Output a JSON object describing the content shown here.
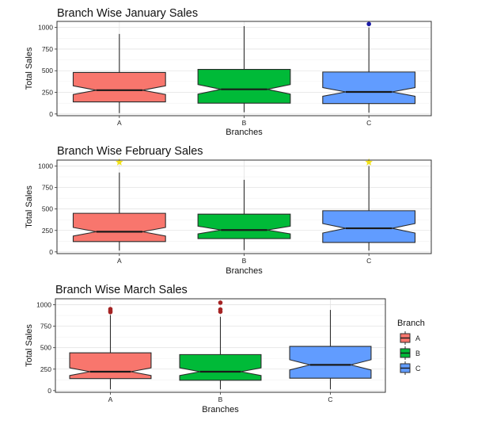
{
  "theme": {
    "colors": {
      "A": "#F8766D",
      "B": "#00BA38",
      "C": "#619CFF"
    },
    "outline": "#2b2b2b",
    "grid_major": "#e3e3e3",
    "grid_minor": "#f1f1f1"
  },
  "legend": {
    "title": "Branch",
    "placement": "right",
    "items": [
      "A",
      "B",
      "C"
    ]
  },
  "chart_data": [
    {
      "type": "boxplot",
      "notched": true,
      "title": "Branch Wise January Sales",
      "xlabel": "Branches",
      "ylabel": "Total Sales",
      "ylim": [
        -20,
        1070
      ],
      "yticks": [
        0,
        250,
        500,
        750,
        1000
      ],
      "grid": true,
      "categories": [
        "A",
        "B",
        "C"
      ],
      "boxes": [
        {
          "name": "A",
          "min": 10,
          "q1": 140,
          "median": 275,
          "q3": 480,
          "max": 925,
          "notch_low": 225,
          "notch_high": 325,
          "outliers": []
        },
        {
          "name": "B",
          "min": 20,
          "q1": 125,
          "median": 285,
          "q3": 515,
          "max": 1015,
          "notch_low": 230,
          "notch_high": 340,
          "outliers": []
        },
        {
          "name": "C",
          "min": 15,
          "q1": 120,
          "median": 255,
          "q3": 485,
          "max": 1000,
          "notch_low": 205,
          "notch_high": 305,
          "outliers": [
            1040
          ]
        }
      ],
      "outlier_color": "#1a1aa6"
    },
    {
      "type": "boxplot",
      "notched": true,
      "title": "Branch Wise February Sales",
      "xlabel": "Branches",
      "ylabel": "Total Sales",
      "ylim": [
        -20,
        1070
      ],
      "yticks": [
        0,
        250,
        500,
        750,
        1000
      ],
      "grid": true,
      "categories": [
        "A",
        "B",
        "C"
      ],
      "boxes": [
        {
          "name": "A",
          "min": 15,
          "q1": 120,
          "median": 235,
          "q3": 450,
          "max": 925,
          "notch_low": 185,
          "notch_high": 285,
          "outliers": [
            1045
          ]
        },
        {
          "name": "B",
          "min": 20,
          "q1": 155,
          "median": 255,
          "q3": 440,
          "max": 840,
          "notch_low": 210,
          "notch_high": 300,
          "outliers": []
        },
        {
          "name": "C",
          "min": 15,
          "q1": 110,
          "median": 275,
          "q3": 480,
          "max": 1000,
          "notch_low": 220,
          "notch_high": 330,
          "outliers": [
            1045
          ]
        }
      ],
      "outlier_color": "#f2e21a",
      "outlier_shape": "star"
    },
    {
      "type": "boxplot",
      "notched": true,
      "title": "Branch Wise March Sales",
      "xlabel": "Branches",
      "ylabel": "Total Sales",
      "ylim": [
        -20,
        1070
      ],
      "yticks": [
        0,
        250,
        500,
        750,
        1000
      ],
      "grid": true,
      "categories": [
        "A",
        "B",
        "C"
      ],
      "boxes": [
        {
          "name": "A",
          "min": 15,
          "q1": 140,
          "median": 220,
          "q3": 440,
          "max": 880,
          "notch_low": 175,
          "notch_high": 265,
          "outliers": [
            915,
            930,
            950
          ]
        },
        {
          "name": "B",
          "min": 15,
          "q1": 120,
          "median": 220,
          "q3": 420,
          "max": 860,
          "notch_low": 175,
          "notch_high": 265,
          "outliers": [
            920,
            945,
            1025
          ]
        },
        {
          "name": "C",
          "min": 15,
          "q1": 145,
          "median": 300,
          "q3": 515,
          "max": 940,
          "notch_low": 240,
          "notch_high": 360,
          "outliers": []
        }
      ],
      "outlier_color": "#a52323"
    }
  ]
}
